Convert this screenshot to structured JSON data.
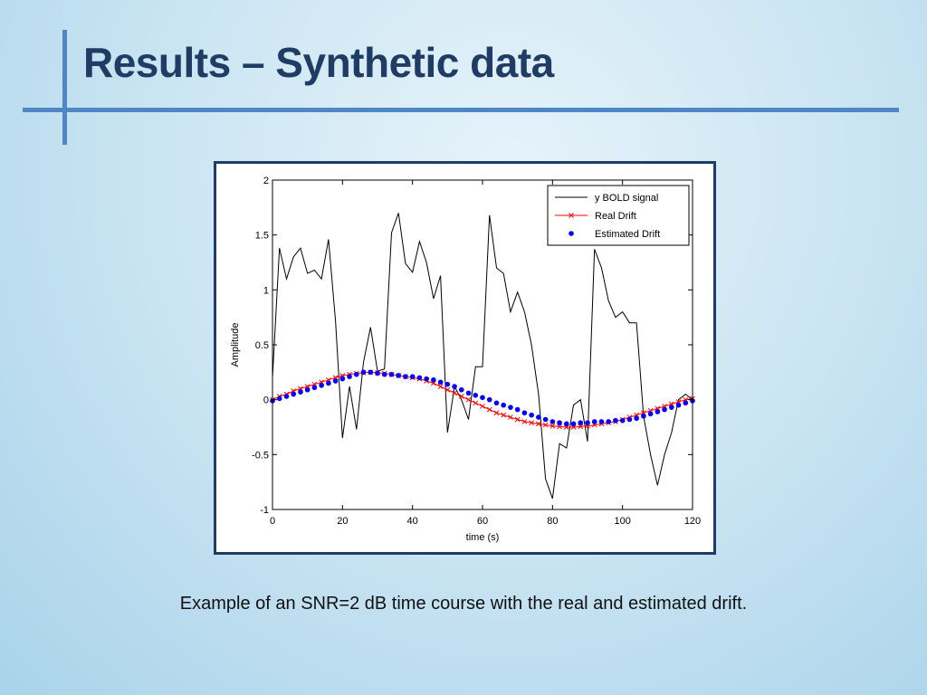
{
  "slide": {
    "title": "Results – Synthetic data",
    "caption": "Example of an SNR=2 dB time course with the real and estimated drift."
  },
  "chart_data": {
    "type": "line",
    "title": "",
    "xlabel": "time (s)",
    "ylabel": "Amplitude",
    "xlim": [
      0,
      120
    ],
    "ylim": [
      -1,
      2
    ],
    "xticks": [
      0,
      20,
      40,
      60,
      80,
      100,
      120
    ],
    "yticks": [
      -1,
      -0.5,
      0,
      0.5,
      1,
      1.5,
      2
    ],
    "grid": false,
    "legend_position": "top-right",
    "colors": {
      "signal": "#000000",
      "real": "#ff0000",
      "estimated": "#0000ff"
    },
    "series": [
      {
        "name": "y BOLD signal",
        "style": "line",
        "x": [
          0,
          2,
          4,
          6,
          8,
          10,
          12,
          14,
          16,
          18,
          20,
          22,
          24,
          26,
          28,
          30,
          32,
          34,
          36,
          38,
          40,
          42,
          44,
          46,
          48,
          50,
          52,
          54,
          56,
          58,
          60,
          62,
          64,
          66,
          68,
          70,
          72,
          74,
          76,
          78,
          80,
          82,
          84,
          86,
          88,
          90,
          92,
          94,
          96,
          98,
          100,
          102,
          104,
          106,
          108,
          110,
          112,
          114,
          116,
          118,
          120
        ],
        "y": [
          0.2,
          1.38,
          1.1,
          1.3,
          1.38,
          1.15,
          1.18,
          1.1,
          1.46,
          0.72,
          -0.35,
          0.12,
          -0.27,
          0.34,
          0.66,
          0.26,
          0.28,
          1.52,
          1.7,
          1.24,
          1.16,
          1.44,
          1.25,
          0.92,
          1.13,
          -0.3,
          0.12,
          0.0,
          -0.18,
          0.3,
          0.3,
          1.68,
          1.2,
          1.15,
          0.8,
          0.98,
          0.8,
          0.5,
          0.05,
          -0.72,
          -0.9,
          -0.4,
          -0.44,
          -0.05,
          0.0,
          -0.38,
          1.37,
          1.2,
          0.9,
          0.75,
          0.8,
          0.7,
          0.7,
          -0.15,
          -0.5,
          -0.78,
          -0.5,
          -0.3,
          0.0,
          0.05,
          0.0
        ]
      },
      {
        "name": "Real Drift",
        "style": "line-x",
        "x": [
          0,
          2,
          4,
          6,
          8,
          10,
          12,
          14,
          16,
          18,
          20,
          22,
          24,
          26,
          28,
          30,
          32,
          34,
          36,
          38,
          40,
          42,
          44,
          46,
          48,
          50,
          52,
          54,
          56,
          58,
          60,
          62,
          64,
          66,
          68,
          70,
          72,
          74,
          76,
          78,
          80,
          82,
          84,
          86,
          88,
          90,
          92,
          94,
          96,
          98,
          100,
          102,
          104,
          106,
          108,
          110,
          112,
          114,
          116,
          118,
          120
        ],
        "y": [
          0.0,
          0.03,
          0.05,
          0.08,
          0.1,
          0.12,
          0.14,
          0.16,
          0.18,
          0.2,
          0.22,
          0.23,
          0.24,
          0.245,
          0.25,
          0.245,
          0.24,
          0.23,
          0.22,
          0.21,
          0.2,
          0.19,
          0.17,
          0.15,
          0.12,
          0.09,
          0.06,
          0.03,
          0.0,
          -0.03,
          -0.06,
          -0.09,
          -0.12,
          -0.14,
          -0.16,
          -0.18,
          -0.2,
          -0.21,
          -0.22,
          -0.23,
          -0.24,
          -0.245,
          -0.25,
          -0.25,
          -0.245,
          -0.24,
          -0.23,
          -0.22,
          -0.21,
          -0.2,
          -0.18,
          -0.16,
          -0.14,
          -0.12,
          -0.1,
          -0.08,
          -0.06,
          -0.04,
          -0.02,
          0.0,
          0.01
        ]
      },
      {
        "name": "Estimated Drift",
        "style": "dots",
        "x": [
          0,
          2,
          4,
          6,
          8,
          10,
          12,
          14,
          16,
          18,
          20,
          22,
          24,
          26,
          28,
          30,
          32,
          34,
          36,
          38,
          40,
          42,
          44,
          46,
          48,
          50,
          52,
          54,
          56,
          58,
          60,
          62,
          64,
          66,
          68,
          70,
          72,
          74,
          76,
          78,
          80,
          82,
          84,
          86,
          88,
          90,
          92,
          94,
          96,
          98,
          100,
          102,
          104,
          106,
          108,
          110,
          112,
          114,
          116,
          118,
          120
        ],
        "y": [
          -0.01,
          0.01,
          0.03,
          0.05,
          0.07,
          0.09,
          0.11,
          0.13,
          0.15,
          0.17,
          0.19,
          0.21,
          0.23,
          0.25,
          0.25,
          0.24,
          0.23,
          0.23,
          0.22,
          0.21,
          0.21,
          0.2,
          0.19,
          0.18,
          0.16,
          0.14,
          0.12,
          0.09,
          0.06,
          0.04,
          0.02,
          0.0,
          -0.03,
          -0.05,
          -0.07,
          -0.09,
          -0.12,
          -0.14,
          -0.16,
          -0.18,
          -0.2,
          -0.21,
          -0.22,
          -0.22,
          -0.21,
          -0.21,
          -0.2,
          -0.2,
          -0.2,
          -0.19,
          -0.19,
          -0.18,
          -0.17,
          -0.15,
          -0.13,
          -0.11,
          -0.09,
          -0.07,
          -0.05,
          -0.03,
          -0.01
        ]
      }
    ]
  }
}
